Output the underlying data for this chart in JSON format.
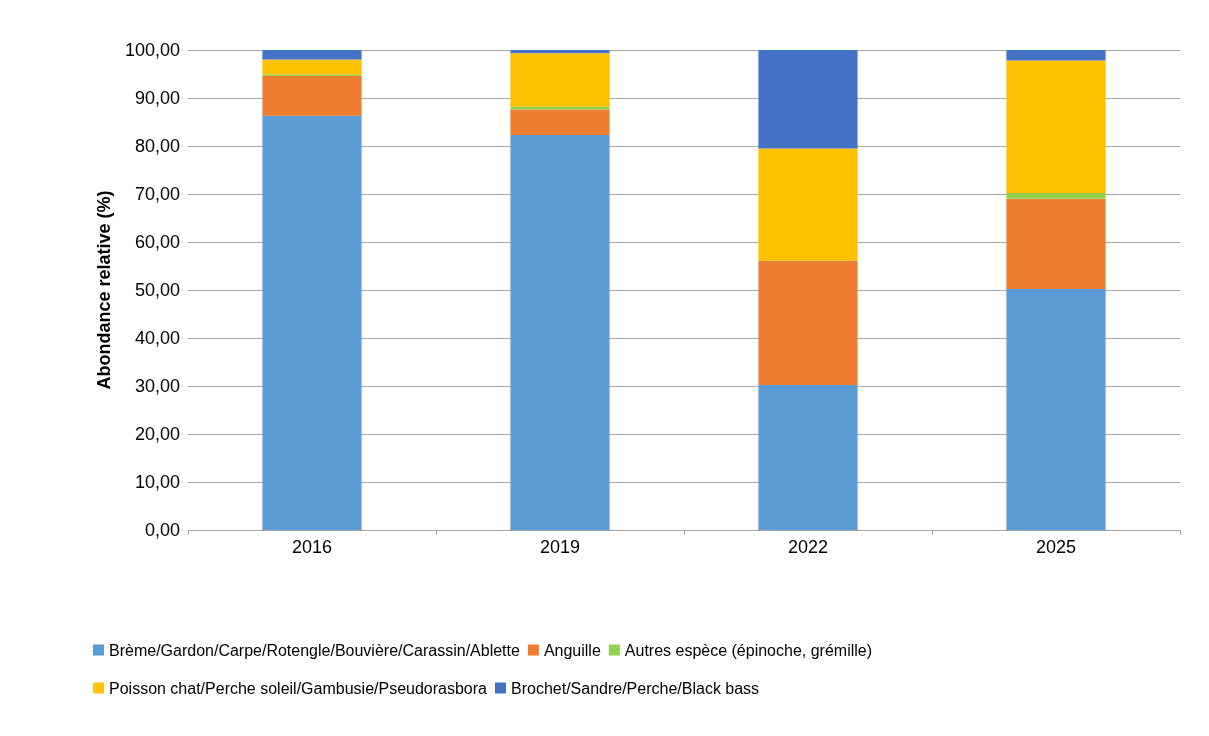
{
  "chart_data": {
    "type": "bar",
    "stacked": true,
    "ylabel": "Abondance relative (%)",
    "categories": [
      "2016",
      "2019",
      "2022",
      "2025"
    ],
    "series": [
      {
        "name": "Brème/Gardon/Carpe/Rotengle/Bouvière/Carassin/Ablette",
        "color": "#5b9bd5",
        "values": [
          86.3,
          82.3,
          30.2,
          50.2
        ]
      },
      {
        "name": "Anguille",
        "color": "#ed7d31",
        "values": [
          8.3,
          5.3,
          25.9,
          18.8
        ]
      },
      {
        "name": "Autres espèce (épinoche, grémille)",
        "color": "#92d050",
        "values": [
          0.3,
          0.6,
          0,
          1.2
        ]
      },
      {
        "name": "Poisson chat/Perche soleil/Gambusie/Pseudorasbora",
        "color": "#ffc000",
        "values": [
          3.1,
          11.1,
          23.4,
          27.6
        ]
      },
      {
        "name": "Brochet/Sandre/Perche/Black bass",
        "color": "#4472c4",
        "values": [
          2.0,
          0.7,
          20.5,
          2.2
        ]
      }
    ],
    "ylim": [
      0,
      100
    ],
    "yticks": [
      {
        "value": 0,
        "label": "0,00"
      },
      {
        "value": 10,
        "label": "10,00"
      },
      {
        "value": 20,
        "label": "20,00"
      },
      {
        "value": 30,
        "label": "30,00"
      },
      {
        "value": 40,
        "label": "40,00"
      },
      {
        "value": 50,
        "label": "50,00"
      },
      {
        "value": 60,
        "label": "60,00"
      },
      {
        "value": 70,
        "label": "70,00"
      },
      {
        "value": 80,
        "label": "80,00"
      },
      {
        "value": 90,
        "label": "90,00"
      },
      {
        "value": 100,
        "label": "100,00"
      }
    ],
    "grid": "y",
    "legend": "bottom"
  }
}
